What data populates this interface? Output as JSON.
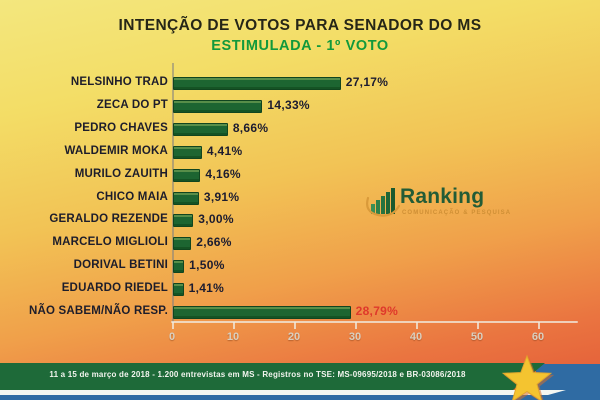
{
  "header": {
    "title": "INTENÇÃO DE VOTOS PARA SENADOR DO MS",
    "subtitle": "ESTIMULADA - 1º VOTO"
  },
  "chart_data": {
    "type": "bar",
    "orientation": "horizontal",
    "title": "INTENÇÃO DE VOTOS PARA SENADOR DO MS — ESTIMULADA - 1º VOTO",
    "categories": [
      "NELSINHO TRAD",
      "ZECA DO PT",
      "PEDRO CHAVES",
      "WALDEMIR MOKA",
      "MURILO ZAUITH",
      "CHICO MAIA",
      "GERALDO REZENDE",
      "MARCELO MIGLIOLI",
      "DORIVAL BETINI",
      "EDUARDO RIEDEL",
      "NÃO SABEM/NÃO RESP."
    ],
    "values": [
      27.17,
      14.33,
      8.66,
      4.41,
      4.16,
      3.91,
      3.0,
      2.66,
      1.5,
      1.41,
      28.79
    ],
    "value_labels": [
      "27,17%",
      "14,33%",
      "8,66%",
      "4,41%",
      "4,16%",
      "3,91%",
      "3,00%",
      "2,66%",
      "1,50%",
      "1,41%",
      "28,79%"
    ],
    "highlight_red_index": 10,
    "xlim": [
      0,
      60
    ],
    "x_ticks": [
      0,
      10,
      20,
      30,
      40,
      50,
      60
    ],
    "grid": false,
    "bar_color": "#1d6531",
    "highlight_value_color": "#df392b"
  },
  "logo": {
    "name": "Ranking",
    "tagline": "COMUNICAÇÃO & PESQUISA"
  },
  "footer": {
    "text": "11 a 15 de março de 2018 - 1.200 entrevistas em MS - Registros no TSE: MS-09695/2018 e BR-03086/2018"
  },
  "colors": {
    "background_top": "#f3e77e",
    "background_bottom": "#e25837",
    "bar_green": "#1d6531",
    "subtitle_green": "#12993c",
    "band_green": "#1e6a39",
    "flag_blue": "#2f6ba3",
    "star_gold": "#f4c430",
    "value_text": "#1c1c30",
    "value_red": "#df392b"
  }
}
